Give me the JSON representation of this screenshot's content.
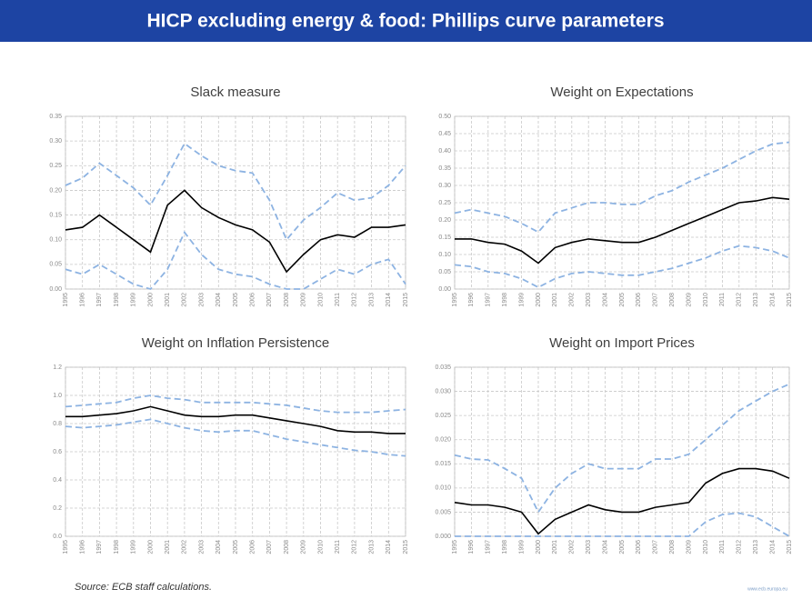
{
  "header": {
    "title": "HICP excluding energy & food: Phillips curve parameters"
  },
  "footer": {
    "source": "Source: ECB staff calculations.",
    "url": "www.ecb.europa.eu"
  },
  "chart_data": [
    {
      "type": "line",
      "title": "Slack measure",
      "x": [
        1995,
        1996,
        1997,
        1998,
        1999,
        2000,
        2001,
        2002,
        2003,
        2004,
        2005,
        2006,
        2007,
        2008,
        2009,
        2010,
        2011,
        2012,
        2013,
        2014,
        2015
      ],
      "xlim": [
        1995,
        2015
      ],
      "xticks": [
        1995,
        1996,
        1997,
        1998,
        1999,
        2000,
        2001,
        2002,
        2003,
        2004,
        2005,
        2006,
        2007,
        2008,
        2009,
        2010,
        2011,
        2012,
        2013,
        2014,
        2015
      ],
      "ylim": [
        0,
        0.35
      ],
      "yticks": [
        {
          "value": 0,
          "label": "0.00"
        },
        0.05,
        {
          "value": 0.1,
          "label": "0.10"
        },
        0.15,
        {
          "value": 0.2,
          "label": "0.20"
        },
        0.25,
        {
          "value": 0.3,
          "label": "0.30"
        },
        0.35
      ],
      "grid": true,
      "series": [
        {
          "color": "#000000",
          "dash": false,
          "values": [
            0.12,
            0.125,
            0.15,
            0.125,
            0.1,
            0.075,
            0.17,
            0.2,
            0.165,
            0.145,
            0.13,
            0.12,
            0.095,
            0.035,
            0.07,
            0.1,
            0.11,
            0.105,
            0.125,
            0.125,
            0.13
          ]
        },
        {
          "color": "#8db3e2",
          "dash": true,
          "values": [
            0.21,
            0.225,
            0.255,
            0.23,
            0.205,
            0.17,
            0.23,
            0.295,
            0.27,
            0.25,
            0.24,
            0.235,
            0.18,
            0.1,
            0.14,
            0.165,
            0.195,
            0.18,
            0.185,
            0.21,
            0.25
          ]
        },
        {
          "color": "#8db3e2",
          "dash": true,
          "values": [
            0.04,
            0.03,
            0.05,
            0.03,
            0.01,
            0,
            0.04,
            0.115,
            0.07,
            0.04,
            0.03,
            0.025,
            0.01,
            0,
            0,
            0.02,
            0.04,
            0.03,
            0.05,
            0.06,
            0.01
          ]
        }
      ]
    },
    {
      "type": "line",
      "title": "Weight on Expectations",
      "x": [
        1995,
        1996,
        1997,
        1998,
        1999,
        2000,
        2001,
        2002,
        2003,
        2004,
        2005,
        2006,
        2007,
        2008,
        2009,
        2010,
        2011,
        2012,
        2013,
        2014,
        2015
      ],
      "xlim": [
        1995,
        2015
      ],
      "xticks": [
        1995,
        1996,
        1997,
        1998,
        1999,
        2000,
        2001,
        2002,
        2003,
        2004,
        2005,
        2006,
        2007,
        2008,
        2009,
        2010,
        2011,
        2012,
        2013,
        2014,
        2015
      ],
      "ylim": [
        0,
        0.5
      ],
      "yticks": [
        {
          "value": 0,
          "label": "0.00"
        },
        0.05,
        {
          "value": 0.1,
          "label": "0.10"
        },
        0.15,
        {
          "value": 0.2,
          "label": "0.20"
        },
        0.25,
        {
          "value": 0.3,
          "label": "0.30"
        },
        0.35,
        {
          "value": 0.4,
          "label": "0.40"
        },
        0.45,
        {
          "value": 0.5,
          "label": "0.50"
        }
      ],
      "grid": true,
      "series": [
        {
          "color": "#000000",
          "dash": false,
          "values": [
            0.145,
            0.145,
            0.135,
            0.13,
            0.11,
            0.075,
            0.12,
            0.135,
            0.145,
            0.14,
            0.135,
            0.135,
            0.15,
            0.17,
            0.19,
            0.21,
            0.23,
            0.25,
            0.255,
            0.265,
            0.26
          ]
        },
        {
          "color": "#8db3e2",
          "dash": true,
          "values": [
            0.22,
            0.23,
            0.22,
            0.21,
            0.19,
            0.165,
            0.22,
            0.235,
            0.25,
            0.25,
            0.245,
            0.245,
            0.27,
            0.285,
            0.31,
            0.33,
            0.35,
            0.375,
            0.4,
            0.42,
            0.425
          ]
        },
        {
          "color": "#8db3e2",
          "dash": true,
          "values": [
            0.07,
            0.065,
            0.05,
            0.045,
            0.03,
            0.005,
            0.03,
            0.045,
            0.05,
            0.045,
            0.04,
            0.04,
            0.05,
            0.06,
            0.075,
            0.09,
            0.11,
            0.125,
            0.12,
            0.11,
            0.09
          ]
        }
      ]
    },
    {
      "type": "line",
      "title": "Weight on Inflation Persistence",
      "x": [
        1995,
        1996,
        1997,
        1998,
        1999,
        2000,
        2001,
        2002,
        2003,
        2004,
        2005,
        2006,
        2007,
        2008,
        2009,
        2010,
        2011,
        2012,
        2013,
        2014,
        2015
      ],
      "xlim": [
        1995,
        2015
      ],
      "xticks": [
        1995,
        1996,
        1997,
        1998,
        1999,
        2000,
        2001,
        2002,
        2003,
        2004,
        2005,
        2006,
        2007,
        2008,
        2009,
        2010,
        2011,
        2012,
        2013,
        2014,
        2015
      ],
      "ylim": [
        0,
        1.2
      ],
      "yticks": [
        {
          "value": 0,
          "label": "0.0"
        },
        0.2,
        0.4,
        0.6,
        0.8,
        {
          "value": 1,
          "label": "1.0"
        },
        1.2
      ],
      "grid": true,
      "series": [
        {
          "color": "#000000",
          "dash": false,
          "values": [
            0.85,
            0.85,
            0.86,
            0.87,
            0.89,
            0.92,
            0.89,
            0.86,
            0.85,
            0.85,
            0.86,
            0.86,
            0.84,
            0.82,
            0.8,
            0.78,
            0.75,
            0.74,
            0.74,
            0.73,
            0.73
          ]
        },
        {
          "color": "#8db3e2",
          "dash": true,
          "values": [
            0.92,
            0.93,
            0.94,
            0.95,
            0.98,
            1.0,
            0.98,
            0.97,
            0.95,
            0.95,
            0.95,
            0.95,
            0.94,
            0.93,
            0.91,
            0.89,
            0.88,
            0.88,
            0.88,
            0.89,
            0.9
          ]
        },
        {
          "color": "#8db3e2",
          "dash": true,
          "values": [
            0.78,
            0.77,
            0.78,
            0.79,
            0.81,
            0.83,
            0.8,
            0.77,
            0.75,
            0.74,
            0.75,
            0.75,
            0.72,
            0.69,
            0.67,
            0.65,
            0.63,
            0.61,
            0.6,
            0.58,
            0.57
          ]
        }
      ]
    },
    {
      "type": "line",
      "title": "Weight on Import Prices",
      "x": [
        1995,
        1996,
        1997,
        1998,
        1999,
        2000,
        2001,
        2002,
        2003,
        2004,
        2005,
        2006,
        2007,
        2008,
        2009,
        2010,
        2011,
        2012,
        2013,
        2014,
        2015
      ],
      "xlim": [
        1995,
        2015
      ],
      "xticks": [
        1995,
        1996,
        1997,
        1998,
        1999,
        2000,
        2001,
        2002,
        2003,
        2004,
        2005,
        2006,
        2007,
        2008,
        2009,
        2010,
        2011,
        2012,
        2013,
        2014,
        2015
      ],
      "ylim": [
        0,
        0.035
      ],
      "yticks": [
        {
          "value": 0,
          "label": "0.000"
        },
        0.005,
        {
          "value": 0.01,
          "label": "0.010"
        },
        0.015,
        {
          "value": 0.02,
          "label": "0.020"
        },
        0.025,
        {
          "value": 0.03,
          "label": "0.030"
        },
        0.035
      ],
      "grid": true,
      "series": [
        {
          "color": "#000000",
          "dash": false,
          "values": [
            0.007,
            0.0065,
            0.0065,
            0.006,
            0.005,
            0.0005,
            0.0035,
            0.005,
            0.0065,
            0.0055,
            0.005,
            0.005,
            0.006,
            0.0065,
            0.007,
            0.011,
            0.013,
            0.014,
            0.014,
            0.0135,
            0.012
          ]
        },
        {
          "color": "#8db3e2",
          "dash": true,
          "values": [
            0.0168,
            0.016,
            0.0158,
            0.014,
            0.012,
            0.005,
            0.01,
            0.013,
            0.015,
            0.014,
            0.014,
            0.014,
            0.016,
            0.016,
            0.017,
            0.02,
            0.023,
            0.026,
            0.028,
            0.03,
            0.0315
          ]
        },
        {
          "color": "#8db3e2",
          "dash": true,
          "values": [
            0,
            0,
            0,
            0,
            0,
            0,
            0,
            0,
            0,
            0,
            0,
            0,
            0,
            0,
            0,
            0.003,
            0.0045,
            0.0048,
            0.004,
            0.002,
            0
          ]
        }
      ]
    }
  ]
}
